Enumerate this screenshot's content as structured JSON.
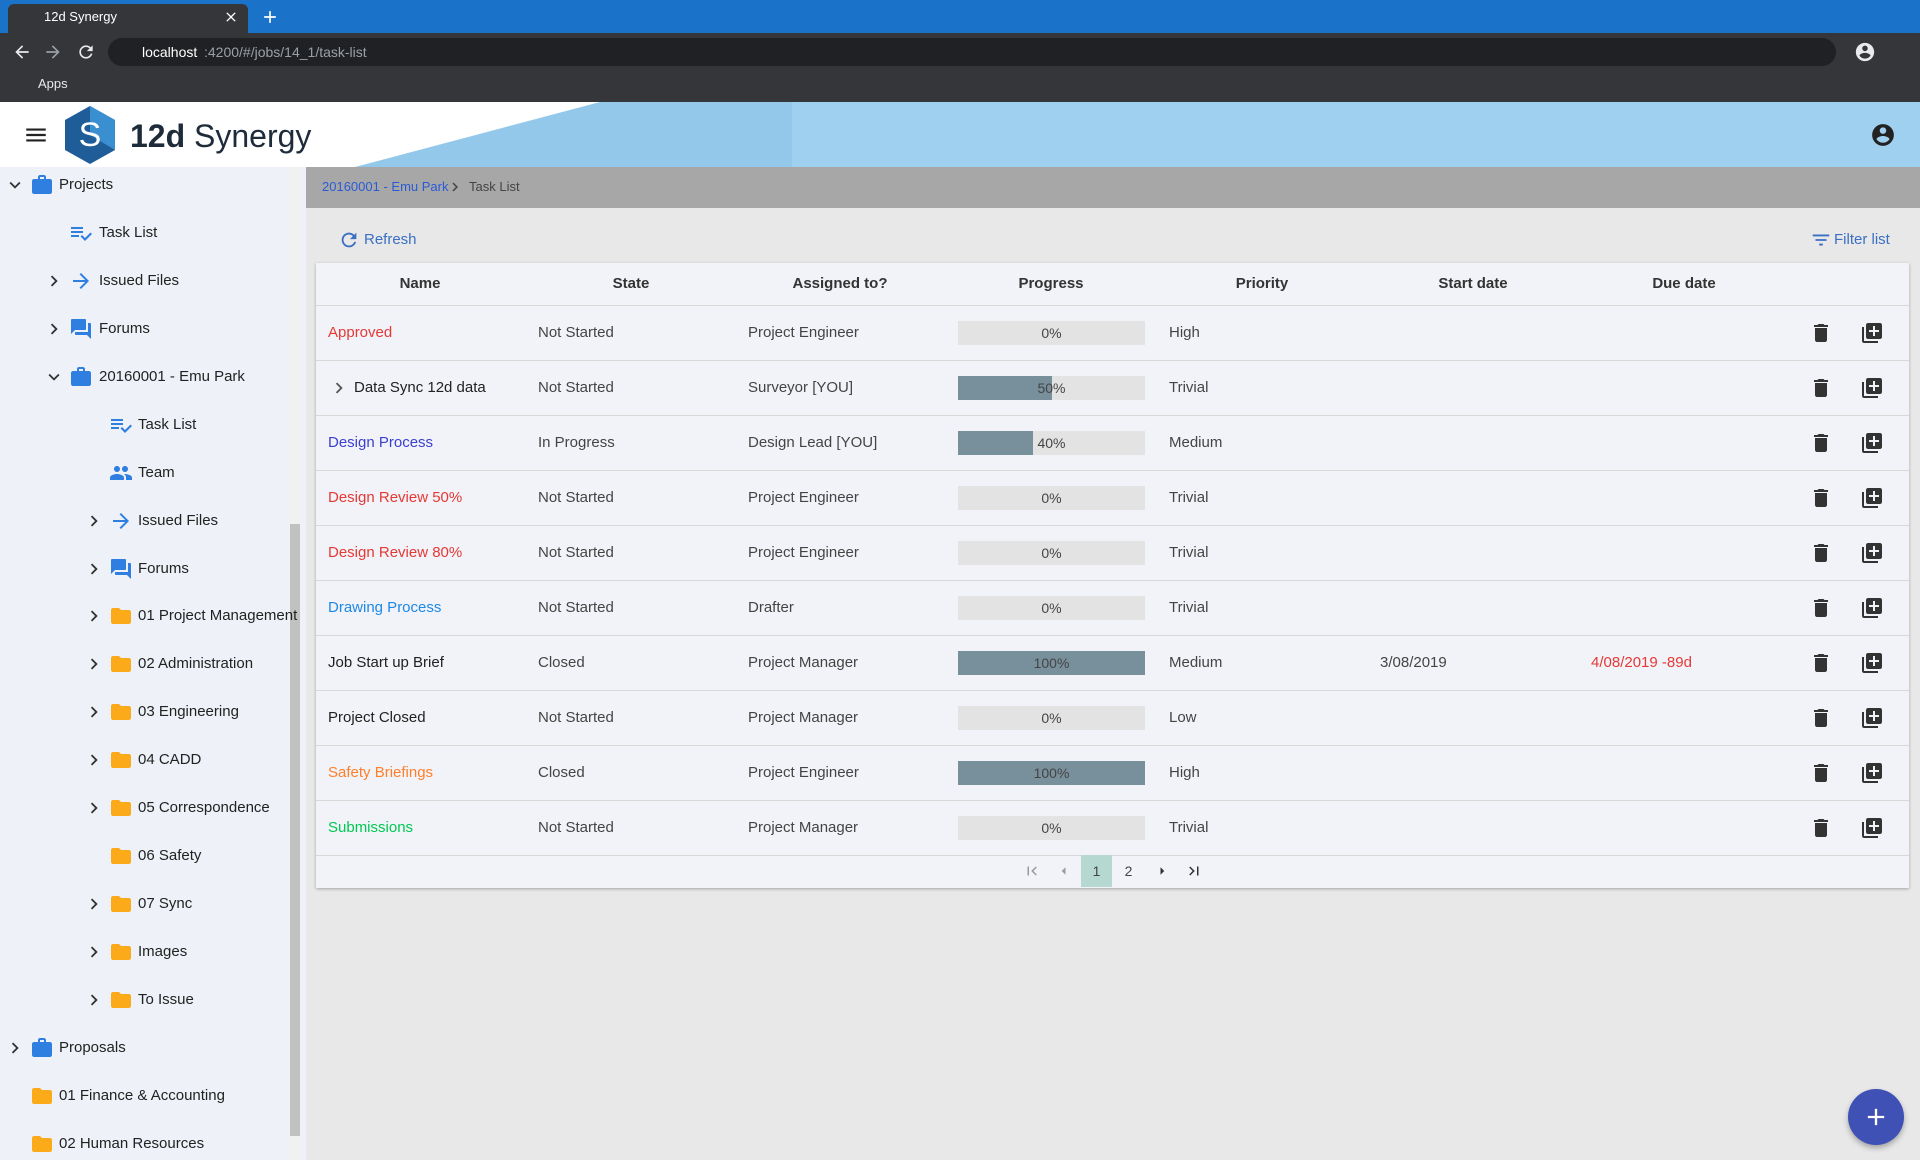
{
  "browser": {
    "tab_title": "12d Synergy",
    "url_host": "localhost",
    "url_path": ":4200/#/jobs/14_1/task-list",
    "bookmark": "Apps"
  },
  "app": {
    "logo_number": "12d",
    "logo_word": "Synergy"
  },
  "sidebar": {
    "items": [
      "Projects",
      "Task List",
      "Issued Files",
      "Forums",
      "20160001 - Emu Park",
      "Task List",
      "Team",
      "Issued Files",
      "Forums",
      "01 Project Management",
      "02 Administration",
      "03 Engineering",
      "04 CADD",
      "05 Correspondence",
      "06 Safety",
      "07 Sync",
      "Images",
      "To Issue",
      "Proposals",
      "01 Finance & Accounting",
      "02 Human Resources"
    ]
  },
  "breadcrumb": [
    "20160001 - Emu Park",
    "Task List"
  ],
  "toolbar": {
    "refresh": "Refresh",
    "filter": "Filter list"
  },
  "table": {
    "columns": [
      "Name",
      "State",
      "Assigned to?",
      "Progress",
      "Priority",
      "Start date",
      "Due date"
    ],
    "progress_range": [
      0,
      100
    ],
    "rows": [
      {
        "name": "Approved",
        "name_color": "#e53935",
        "state": "Not Started",
        "assigned": "Project Engineer",
        "progress": 0,
        "progress_label": "0%",
        "priority": "High",
        "start": null,
        "due": null
      },
      {
        "name": "Data Sync 12d data",
        "name_color": "#212121",
        "state": "Not Started",
        "assigned": "Surveyor [YOU]",
        "progress": 50,
        "progress_label": "50%",
        "priority": "Trivial",
        "start": null,
        "due": null
      },
      {
        "name": "Design Process",
        "name_color": "#3a3fd0",
        "state": "In Progress",
        "assigned": "Design Lead [YOU]",
        "progress": 40,
        "progress_label": "40%",
        "priority": "Medium",
        "start": null,
        "due": null
      },
      {
        "name": "Design Review 50%",
        "name_color": "#e53935",
        "state": "Not Started",
        "assigned": "Project Engineer",
        "progress": 0,
        "progress_label": "0%",
        "priority": "Trivial",
        "start": null,
        "due": null
      },
      {
        "name": "Design Review 80%",
        "name_color": "#e53935",
        "state": "Not Started",
        "assigned": "Project Engineer",
        "progress": 0,
        "progress_label": "0%",
        "priority": "Trivial",
        "start": null,
        "due": null
      },
      {
        "name": "Drawing Process",
        "name_color": "#1e88e5",
        "state": "Not Started",
        "assigned": "Drafter",
        "progress": 0,
        "progress_label": "0%",
        "priority": "Trivial",
        "start": null,
        "due": null
      },
      {
        "name": "Job Start up Brief",
        "name_color": "#212121",
        "state": "Closed",
        "assigned": "Project Manager",
        "progress": 100,
        "progress_label": "100%",
        "priority": "Medium",
        "start": "3/08/2019",
        "due": "4/08/2019 -89d",
        "due_color": "#e53935"
      },
      {
        "name": "Project Closed",
        "name_color": "#212121",
        "state": "Not Started",
        "assigned": "Project Manager",
        "progress": 0,
        "progress_label": "0%",
        "priority": "Low",
        "start": null,
        "due": null
      },
      {
        "name": "Safety Briefings",
        "name_color": "#ff7f2a",
        "state": "Closed",
        "assigned": "Project Engineer",
        "progress": 100,
        "progress_label": "100%",
        "priority": "High",
        "start": null,
        "due": null
      },
      {
        "name": "Submissions",
        "name_color": "#00c853",
        "state": "Not Started",
        "assigned": "Project Manager",
        "progress": 0,
        "progress_label": "0%",
        "priority": "Trivial",
        "start": null,
        "due": null
      }
    ]
  },
  "pagination": {
    "pages": [
      1,
      2
    ],
    "current": 1
  }
}
